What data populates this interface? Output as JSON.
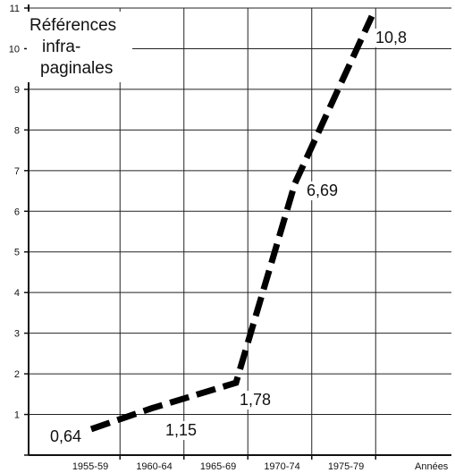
{
  "chart_data": {
    "type": "line",
    "title_lines": [
      "Références",
      "infra-",
      "paginales"
    ],
    "xlabel": "Années",
    "ylabel": "",
    "categories": [
      "1955-59",
      "1960-64",
      "1965-69",
      "1970-74",
      "1975-79"
    ],
    "ylim": [
      0,
      11
    ],
    "yticks": [
      "0",
      "1",
      "2",
      "3",
      "4",
      "5",
      "6",
      "7",
      "8",
      "9",
      "10",
      "11"
    ],
    "grid": true,
    "series": [
      {
        "x": [
          "1955-59",
          "1960-64",
          "1965-69",
          "1970-74",
          "1975-79"
        ],
        "values": [
          0.64,
          1.15,
          1.78,
          6.69,
          10.8
        ],
        "labels": [
          "0,64",
          "1,15",
          "1,78",
          "6,69",
          "10,8"
        ],
        "style": "dashed",
        "color": "#000000"
      }
    ]
  }
}
